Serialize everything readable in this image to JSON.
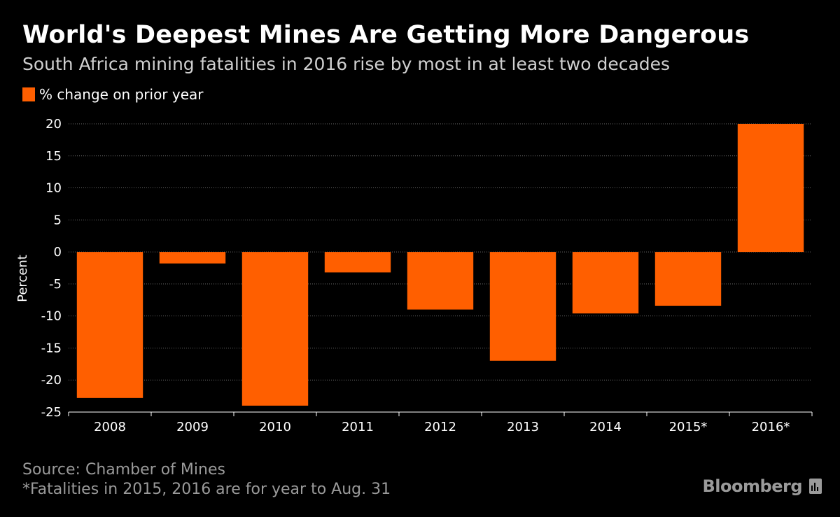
{
  "header": {
    "title": "World's Deepest Mines Are Getting More Dangerous",
    "subtitle": "South Africa mining fatalities in 2016 rise by most in at least two decades"
  },
  "colors": {
    "bar": "#ff5f00",
    "grid": "#6a6a6a",
    "axis": "#ffffff",
    "muted_text": "#9a9a9a",
    "background": "#000000"
  },
  "chart_data": {
    "type": "bar",
    "categories": [
      "2008",
      "2009",
      "2010",
      "2011",
      "2012",
      "2013",
      "2014",
      "2015*",
      "2016*"
    ],
    "series": [
      {
        "name": "% change on prior year",
        "values": [
          -22.8,
          -1.8,
          -24.0,
          -3.2,
          -9.0,
          -17.0,
          -9.6,
          -8.4,
          20.0
        ]
      }
    ],
    "ylabel": "Percent",
    "xlabel": "",
    "ylim": [
      -25,
      20
    ],
    "yticks": [
      20,
      15,
      10,
      5,
      0,
      -5,
      -10,
      -15,
      -20,
      -25
    ],
    "grid": true,
    "legend_position": "top-left"
  },
  "footer": {
    "source": "Source: Chamber of Mines",
    "note": "*Fatalities in 2015, 2016 are for year to Aug. 31",
    "brand": "Bloomberg",
    "brand_icon": "bloomberg-terminal-icon"
  }
}
